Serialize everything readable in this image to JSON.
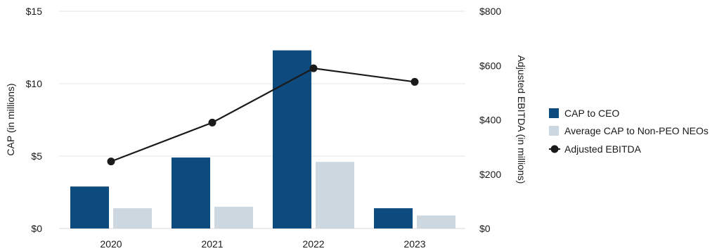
{
  "chart_data": {
    "type": "bar",
    "categories": [
      "2020",
      "2021",
      "2022",
      "2023"
    ],
    "series": [
      {
        "name": "CAP to CEO",
        "kind": "bar",
        "axis": "left",
        "color": "#0d4a7d",
        "values": [
          2.9,
          4.9,
          12.3,
          1.4
        ]
      },
      {
        "name": "Average CAP to Non-PEO NEOs",
        "kind": "bar",
        "axis": "left",
        "color": "#ccd7e0",
        "values": [
          1.4,
          1.5,
          4.6,
          0.9
        ]
      },
      {
        "name": "Adjusted EBITDA",
        "kind": "line",
        "axis": "right",
        "color": "#1a1a1a",
        "values": [
          247,
          390,
          590,
          540
        ]
      }
    ],
    "ylabel": "CAP (in millions)",
    "y2label": "Adjusted EBITDA (in millions)",
    "ylim": [
      0,
      15
    ],
    "y2lim": [
      0,
      800
    ],
    "yticks": [
      "$0",
      "$5",
      "$10",
      "$15"
    ],
    "y2ticks": [
      "$0",
      "$200",
      "$400",
      "$600",
      "$800"
    ],
    "grid": true,
    "legend_position": "right"
  }
}
